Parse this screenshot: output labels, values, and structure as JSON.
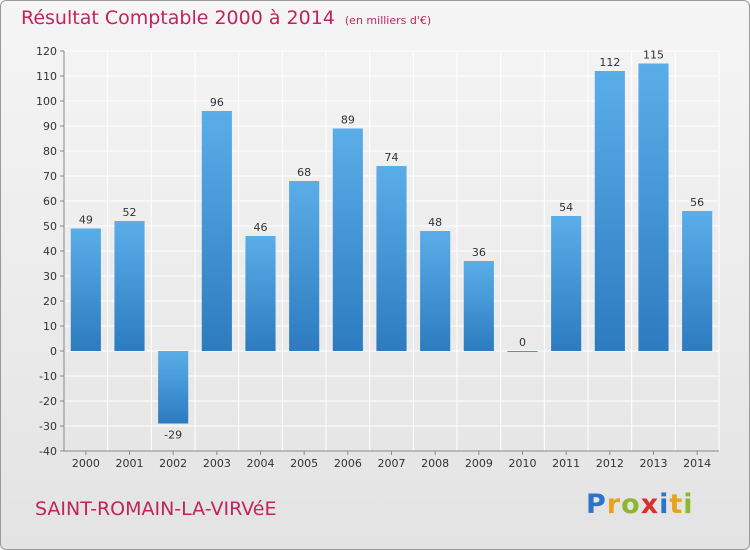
{
  "title": "Résultat Comptable 2000 à 2014",
  "unit_note": "(en milliers d'€)",
  "commune": "SAINT-ROMAIN-LA-VIRVéE",
  "brand": {
    "name": "Proxiti",
    "letters": [
      {
        "char": "P",
        "color": "#2b74c9"
      },
      {
        "char": "r",
        "color": "#e8a21c"
      },
      {
        "char": "o",
        "color": "#8ab82e"
      },
      {
        "char": "x",
        "color": "#d9302a"
      },
      {
        "char": "i",
        "color": "#2b74c9"
      },
      {
        "char": "t",
        "color": "#e8a21c"
      },
      {
        "char": "i",
        "color": "#8ab82e"
      }
    ]
  },
  "colors": {
    "bar_top": "#5aaee8",
    "bar_bottom": "#2d7bc0",
    "title": "#c0245c"
  },
  "chart_data": {
    "type": "bar",
    "categories": [
      "2000",
      "2001",
      "2002",
      "2003",
      "2004",
      "2005",
      "2006",
      "2007",
      "2008",
      "2009",
      "2010",
      "2011",
      "2012",
      "2013",
      "2014"
    ],
    "values": [
      49,
      52,
      -29,
      96,
      46,
      68,
      89,
      74,
      48,
      36,
      0,
      54,
      112,
      115,
      56
    ],
    "ylim": [
      -40,
      120
    ],
    "yticks": [
      -40,
      -30,
      -20,
      -10,
      0,
      10,
      20,
      30,
      40,
      50,
      60,
      70,
      80,
      90,
      100,
      110,
      120
    ],
    "grid": true
  }
}
